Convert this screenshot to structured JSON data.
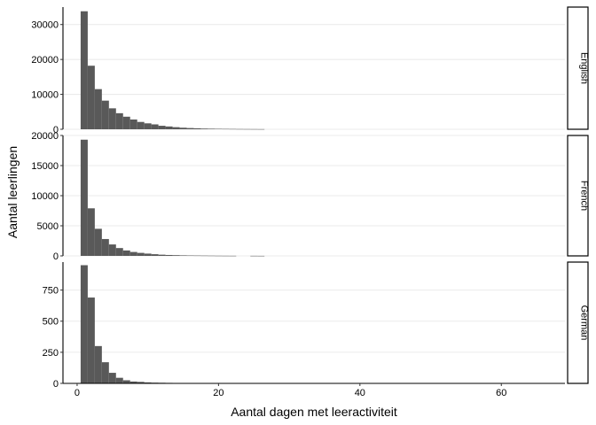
{
  "chart_data": {
    "type": "bar",
    "xlabel": "Aantal dagen met leeractiviteit",
    "ylabel": "Aantal leerlingen",
    "xlim": [
      -2,
      69
    ],
    "x_ticks": [
      0,
      20,
      40,
      60
    ],
    "bin_width": 1,
    "grid": "horizontal-major",
    "bar_color": "#595959",
    "panels": [
      {
        "name": "English",
        "ylim": [
          0,
          35000
        ],
        "y_ticks": [
          0,
          10000,
          20000,
          30000
        ],
        "bins": [
          {
            "x": 1,
            "y": 33800
          },
          {
            "x": 2,
            "y": 18200
          },
          {
            "x": 3,
            "y": 11500
          },
          {
            "x": 4,
            "y": 8200
          },
          {
            "x": 5,
            "y": 6000
          },
          {
            "x": 6,
            "y": 4600
          },
          {
            "x": 7,
            "y": 3600
          },
          {
            "x": 8,
            "y": 2800
          },
          {
            "x": 9,
            "y": 2100
          },
          {
            "x": 10,
            "y": 1700
          },
          {
            "x": 11,
            "y": 1400
          },
          {
            "x": 12,
            "y": 1000
          },
          {
            "x": 13,
            "y": 800
          },
          {
            "x": 14,
            "y": 600
          },
          {
            "x": 15,
            "y": 450
          },
          {
            "x": 16,
            "y": 350
          },
          {
            "x": 17,
            "y": 280
          },
          {
            "x": 18,
            "y": 200
          },
          {
            "x": 19,
            "y": 160
          },
          {
            "x": 20,
            "y": 130
          },
          {
            "x": 21,
            "y": 110
          },
          {
            "x": 22,
            "y": 90
          },
          {
            "x": 23,
            "y": 70
          },
          {
            "x": 24,
            "y": 60
          },
          {
            "x": 25,
            "y": 50
          },
          {
            "x": 26,
            "y": 40
          }
        ]
      },
      {
        "name": "French",
        "ylim": [
          0,
          20000
        ],
        "y_ticks": [
          0,
          5000,
          10000,
          15000,
          20000
        ],
        "bins": [
          {
            "x": 1,
            "y": 19300
          },
          {
            "x": 2,
            "y": 7900
          },
          {
            "x": 3,
            "y": 4500
          },
          {
            "x": 4,
            "y": 2800
          },
          {
            "x": 5,
            "y": 1900
          },
          {
            "x": 6,
            "y": 1300
          },
          {
            "x": 7,
            "y": 900
          },
          {
            "x": 8,
            "y": 650
          },
          {
            "x": 9,
            "y": 500
          },
          {
            "x": 10,
            "y": 380
          },
          {
            "x": 11,
            "y": 280
          },
          {
            "x": 12,
            "y": 200
          },
          {
            "x": 13,
            "y": 150
          },
          {
            "x": 14,
            "y": 120
          },
          {
            "x": 15,
            "y": 90
          },
          {
            "x": 16,
            "y": 70
          },
          {
            "x": 17,
            "y": 60
          },
          {
            "x": 18,
            "y": 50
          },
          {
            "x": 19,
            "y": 40
          },
          {
            "x": 20,
            "y": 30
          },
          {
            "x": 21,
            "y": 25
          },
          {
            "x": 22,
            "y": 20
          },
          {
            "x": 25,
            "y": 15
          },
          {
            "x": 26,
            "y": 10
          }
        ]
      },
      {
        "name": "German",
        "ylim": [
          0,
          975
        ],
        "y_ticks": [
          0,
          250,
          500,
          750
        ],
        "bins": [
          {
            "x": 1,
            "y": 950
          },
          {
            "x": 2,
            "y": 690
          },
          {
            "x": 3,
            "y": 300
          },
          {
            "x": 4,
            "y": 170
          },
          {
            "x": 5,
            "y": 85
          },
          {
            "x": 6,
            "y": 45
          },
          {
            "x": 7,
            "y": 25
          },
          {
            "x": 8,
            "y": 15
          },
          {
            "x": 9,
            "y": 12
          },
          {
            "x": 10,
            "y": 8
          },
          {
            "x": 11,
            "y": 6
          },
          {
            "x": 12,
            "y": 5
          },
          {
            "x": 13,
            "y": 4
          },
          {
            "x": 15,
            "y": 3
          }
        ]
      }
    ]
  }
}
